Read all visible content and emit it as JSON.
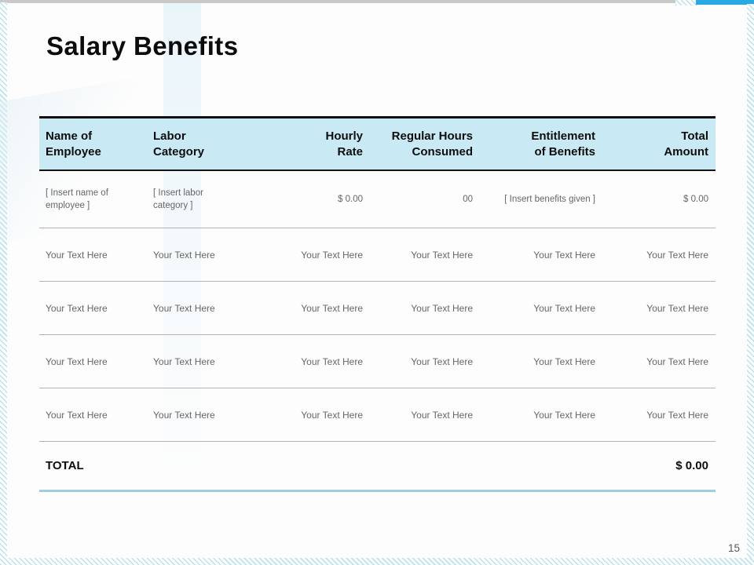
{
  "slide": {
    "title": "Salary Benefits",
    "page_number": "15"
  },
  "table": {
    "columns": [
      {
        "label": "Name of\nEmployee",
        "align": "left"
      },
      {
        "label": "Labor\nCategory",
        "align": "left"
      },
      {
        "label": "Hourly\nRate",
        "align": "right"
      },
      {
        "label": "Regular Hours\nConsumed",
        "align": "right"
      },
      {
        "label": "Entitlement\nof Benefits",
        "align": "right"
      },
      {
        "label": "Total\nAmount",
        "align": "right"
      }
    ],
    "placeholder_row": {
      "cells": [
        "[ Insert name of\nemployee ]",
        "[ Insert labor\ncategory ]",
        "$ 0.00",
        "00",
        "[ Insert benefits given ]",
        "$ 0.00"
      ]
    },
    "rows": [
      {
        "cells": [
          "Your Text Here",
          "Your Text Here",
          "Your Text Here",
          "Your Text Here",
          "Your Text Here",
          "Your Text Here"
        ]
      },
      {
        "cells": [
          "Your Text Here",
          "Your Text Here",
          "Your Text Here",
          "Your Text Here",
          "Your Text Here",
          "Your Text Here"
        ]
      },
      {
        "cells": [
          "Your Text Here",
          "Your Text Here",
          "Your Text Here",
          "Your Text Here",
          "Your Text Here",
          "Your Text Here"
        ]
      },
      {
        "cells": [
          "Your Text Here",
          "Your Text Here",
          "Your Text Here",
          "Your Text Here",
          "Your Text Here",
          "Your Text Here"
        ]
      }
    ],
    "total": {
      "label": "TOTAL",
      "amount": "$ 0.00"
    }
  },
  "colors": {
    "accent_blue": "#29a9e1",
    "top_bar_gray": "#c9c9c9",
    "header_bg": "#c9eaf5",
    "row_border": "#b3b3b3",
    "table_bottom_border": "#9fcfdf",
    "muted_text": "#666666"
  }
}
